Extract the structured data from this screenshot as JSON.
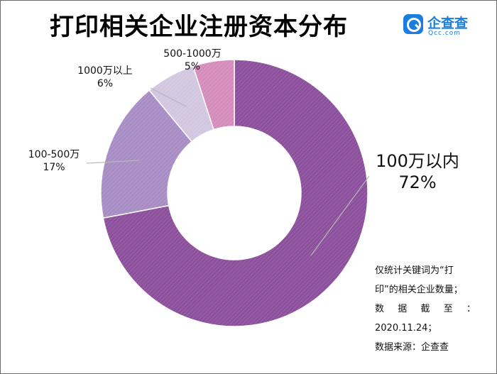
{
  "title": "打印相关企业注册资本分布",
  "logo": {
    "name": "企查查",
    "domain": "Qcc.com"
  },
  "chart_data": {
    "type": "pie",
    "donut": true,
    "title": "打印相关企业注册资本分布",
    "categories": [
      "100万以内",
      "100-500万",
      "1000万以上",
      "500-1000万"
    ],
    "values": [
      72,
      17,
      6,
      5
    ],
    "labels": [
      "72%",
      "17%",
      "6%",
      "5%"
    ],
    "colors": [
      "#8b4f9c",
      "#a88cc4",
      "#d2c6e0",
      "#d48cbc"
    ]
  },
  "note": {
    "lines": [
      "仅统计关键词为“打",
      "印”的相关企业数量；",
      "数 据 截 至 ：",
      "2020.11.24；",
      "数据来源：企查查"
    ]
  }
}
